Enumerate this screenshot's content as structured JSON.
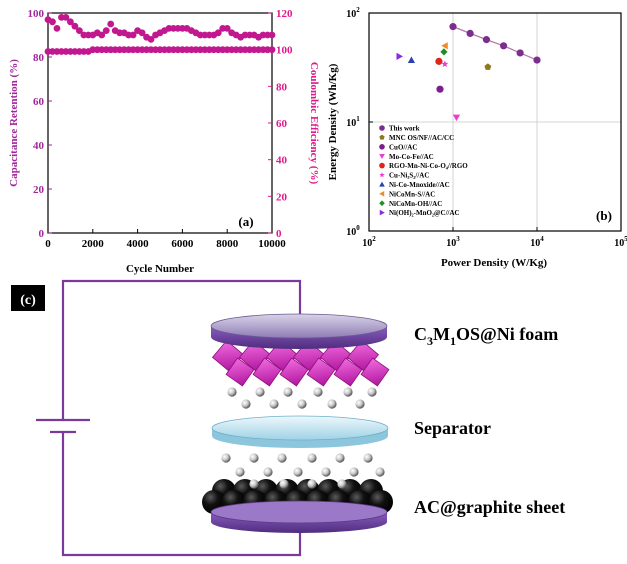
{
  "chart_data": [
    {
      "type": "scatter",
      "panel_label": "(a)",
      "xlabel": "Cycle Number",
      "ylabel": "Capacitance Retention (%)",
      "y2label": "Coulombic Efficiency (%)",
      "xlim": [
        0,
        10000
      ],
      "ylim": [
        0,
        100
      ],
      "y2lim": [
        0,
        120
      ],
      "xticks": [
        "0",
        "2000",
        "4000",
        "6000",
        "8000",
        "10000"
      ],
      "yticks": [
        "0",
        "20",
        "40",
        "60",
        "80",
        "100"
      ],
      "y2ticks": [
        "0",
        "20",
        "40",
        "60",
        "80",
        "100",
        "120"
      ],
      "colors": {
        "left_axis": "#a0289a",
        "right_axis": "#e0198c",
        "marker": "#c2188f"
      },
      "series": [
        {
          "axis": "left",
          "x": [
            0,
            200,
            400,
            600,
            800,
            1000,
            1200,
            1400,
            1600,
            1800,
            2000,
            2200,
            2400,
            2600,
            2800,
            3000,
            3200,
            3400,
            3600,
            3800,
            4000,
            4200,
            4400,
            4600,
            4800,
            5000,
            5200,
            5400,
            5600,
            5800,
            6000,
            6200,
            6400,
            6600,
            6800,
            7000,
            7200,
            7400,
            7600,
            7800,
            8000,
            8200,
            8400,
            8600,
            8800,
            9000,
            9200,
            9400,
            9600,
            9800,
            10000
          ],
          "values": [
            97,
            96,
            93,
            98,
            98,
            96,
            94,
            92,
            90,
            90,
            90,
            91,
            90,
            92,
            95,
            92,
            91,
            91,
            90,
            90,
            92,
            91,
            89,
            88,
            90,
            91,
            92,
            93,
            93,
            93,
            93,
            93,
            92,
            91,
            90,
            90,
            90,
            90,
            91,
            93,
            93,
            91,
            90,
            89,
            90,
            90,
            90,
            89,
            90,
            90,
            90
          ]
        },
        {
          "axis": "right",
          "x": [
            0,
            200,
            400,
            600,
            800,
            1000,
            1200,
            1400,
            1600,
            1800,
            2000,
            2200,
            2400,
            2600,
            2800,
            3000,
            3200,
            3400,
            3600,
            3800,
            4000,
            4200,
            4400,
            4600,
            4800,
            5000,
            5200,
            5400,
            5600,
            5800,
            6000,
            6200,
            6400,
            6600,
            6800,
            7000,
            7200,
            7400,
            7600,
            7800,
            8000,
            8200,
            8400,
            8600,
            8800,
            9000,
            9200,
            9400,
            9600,
            9800,
            10000
          ],
          "values": [
            99,
            99,
            99,
            99,
            99,
            99,
            99,
            99,
            99,
            99,
            100,
            100,
            100,
            100,
            100,
            100,
            100,
            100,
            100,
            100,
            100,
            100,
            100,
            100,
            100,
            100,
            100,
            100,
            100,
            100,
            100,
            100,
            100,
            100,
            100,
            100,
            100,
            100,
            100,
            100,
            100,
            100,
            100,
            100,
            100,
            100,
            100,
            100,
            100,
            100,
            100
          ]
        }
      ]
    },
    {
      "type": "scatter",
      "panel_label": "(b)",
      "xlabel": "Power Density (W/Kg)",
      "ylabel": "Energy Density (Wh/Kg)",
      "xscale": "log",
      "yscale": "log",
      "xlim": [
        100,
        100000
      ],
      "ylim": [
        1,
        100
      ],
      "xticks": [
        {
          "base": "10",
          "exp": "2"
        },
        {
          "base": "10",
          "exp": "3"
        },
        {
          "base": "10",
          "exp": "4"
        },
        {
          "base": "10",
          "exp": "5"
        }
      ],
      "yticks": [
        {
          "base": "10",
          "exp": "0"
        },
        {
          "base": "10",
          "exp": "1"
        },
        {
          "base": "10",
          "exp": "2"
        }
      ],
      "grid": true,
      "legend_position": "bottom-left",
      "series": [
        {
          "name": "This work",
          "marker": "circle",
          "color": "#7b2e8e",
          "connected": true,
          "points": [
            [
              1000,
              75
            ],
            [
              1600,
              65
            ],
            [
              2500,
              57
            ],
            [
              4000,
              50
            ],
            [
              6300,
              43
            ],
            [
              10000,
              37
            ]
          ]
        },
        {
          "name": "MNC OS/NF//AC/CC",
          "marker": "pentagon",
          "color": "#8e7a1e",
          "points": [
            [
              2600,
              32
            ]
          ]
        },
        {
          "name": "CuO//AC",
          "marker": "circle",
          "color": "#7b1f8e",
          "points": [
            [
              700,
              20
            ]
          ]
        },
        {
          "name": "Mo-Co-Fe//AC",
          "marker": "triangle-down",
          "color": "#e83fd0",
          "points": [
            [
              1100,
              11
            ]
          ]
        },
        {
          "name": "RGO-Mn-Ni-Co-O₄//RGO",
          "marker": "circle",
          "color": "#e0241b",
          "points": [
            [
              680,
              36
            ]
          ]
        },
        {
          "name": "Cu-Ni₃S₂//AC",
          "marker": "star",
          "color": "#e83fd0",
          "points": [
            [
              800,
              34
            ]
          ]
        },
        {
          "name": "Ni-Co-Mnoxide//AC",
          "marker": "triangle-up",
          "color": "#2a3fb0",
          "points": [
            [
              320,
              37
            ]
          ]
        },
        {
          "name": "NiCoMn-S//AC",
          "marker": "triangle-left",
          "color": "#f08a24",
          "points": [
            [
              800,
              50
            ]
          ]
        },
        {
          "name": "NiCoMn-OH//AC",
          "marker": "diamond",
          "color": "#1f8e2a",
          "points": [
            [
              780,
              44
            ]
          ]
        },
        {
          "name": "Ni(OH)₂-MnO₂@C//AC",
          "marker": "triangle-right",
          "color": "#8a2be2",
          "points": [
            [
              230,
              40
            ]
          ]
        }
      ]
    }
  ],
  "schematic": {
    "panel_label": "(c)",
    "labels": {
      "cathode_prefix": "C",
      "cathode_sub1": "3",
      "cathode_mid": "M",
      "cathode_sub2": "1",
      "cathode_suffix": "OS@Ni foam",
      "separator": "Separator",
      "anode": "AC@graphite sheet"
    },
    "colors": {
      "circuit": "#7a3a9a",
      "cathode_plate": "#8a70b8",
      "cathode_material": "#d838c8",
      "separator": "#a8dcec",
      "anode_plate": "#8550b8",
      "anode_material": "#101010"
    }
  }
}
